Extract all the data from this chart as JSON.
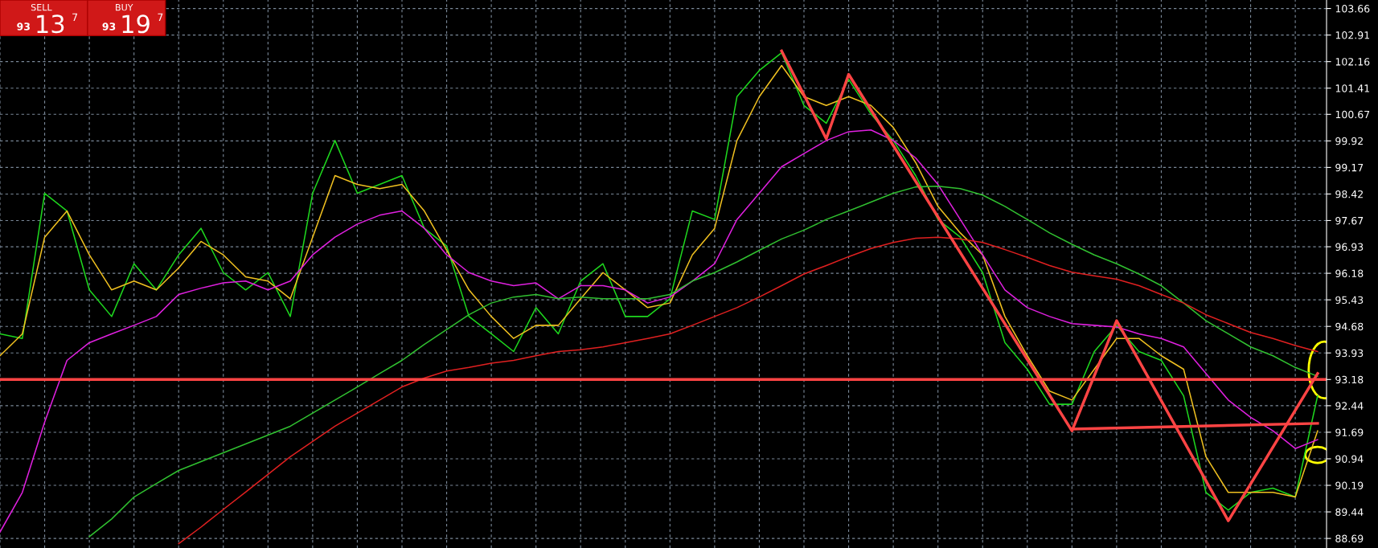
{
  "chart_data": {
    "type": "line",
    "categories": [
      null,
      null,
      null,
      null,
      null,
      null,
      null,
      null,
      null,
      null,
      null,
      null,
      null,
      null,
      null,
      null,
      null,
      null,
      null,
      null,
      null,
      null,
      null,
      null,
      null,
      null,
      null,
      null,
      null,
      null,
      null,
      null,
      null,
      null,
      null,
      null,
      null,
      null,
      null,
      null,
      null,
      null,
      null,
      null,
      null,
      null,
      null,
      null,
      null,
      null,
      null,
      null,
      null,
      null,
      null,
      null,
      null,
      null,
      null,
      null
    ],
    "series": [
      {
        "color": "#1ed81e",
        "values": [
          94.47,
          94.34,
          98.44,
          97.94,
          95.71,
          94.96,
          96.45,
          95.71,
          96.7,
          97.45,
          96.2,
          95.71,
          96.2,
          94.96,
          98.44,
          99.93,
          98.44,
          98.69,
          98.94,
          97.45,
          96.95,
          94.96,
          94.47,
          93.97,
          95.21,
          94.47,
          95.96,
          96.45,
          94.96,
          94.96,
          95.46,
          97.94,
          97.7,
          101.17,
          101.91,
          102.41,
          100.92,
          100.42,
          101.66,
          100.68,
          99.93,
          98.94,
          97.7,
          97.2,
          96.2,
          94.22,
          93.47,
          92.48,
          92.48,
          93.97,
          94.71,
          93.97,
          93.72,
          92.72,
          89.99,
          89.49,
          89.99,
          90.11,
          89.86,
          92.72
        ]
      },
      {
        "color": "#f0c020",
        "values": [
          93.85,
          94.47,
          97.2,
          97.94,
          96.7,
          95.71,
          95.96,
          95.71,
          96.33,
          97.08,
          96.7,
          96.08,
          95.96,
          95.46,
          97.2,
          98.94,
          98.69,
          98.57,
          98.69,
          97.94,
          96.83,
          95.71,
          94.96,
          94.34,
          94.71,
          94.71,
          95.46,
          96.2,
          95.71,
          95.21,
          95.34,
          96.7,
          97.45,
          99.93,
          101.17,
          102.05,
          101.17,
          100.92,
          101.17,
          100.92,
          100.3,
          99.31,
          98.07,
          97.32,
          96.7,
          94.96,
          93.85,
          92.85,
          92.6,
          93.47,
          94.34,
          94.34,
          93.85,
          93.47,
          91.0,
          89.99,
          89.99,
          89.99,
          89.86,
          91.73
        ]
      },
      {
        "color": "#e020e0",
        "values": [
          88.87,
          89.99,
          91.98,
          93.72,
          94.22,
          94.47,
          94.71,
          94.96,
          95.58,
          95.76,
          95.91,
          95.96,
          95.71,
          95.96,
          96.7,
          97.2,
          97.57,
          97.82,
          97.94,
          97.45,
          96.7,
          96.2,
          95.96,
          95.83,
          95.91,
          95.46,
          95.83,
          95.83,
          95.71,
          95.34,
          95.51,
          95.96,
          96.45,
          97.7,
          98.44,
          99.19,
          99.56,
          99.93,
          100.18,
          100.23,
          99.93,
          99.44,
          98.69,
          97.7,
          96.7,
          95.71,
          95.21,
          94.96,
          94.76,
          94.71,
          94.66,
          94.47,
          94.34,
          94.1,
          93.35,
          92.6,
          92.11,
          91.73,
          91.23,
          91.48
        ]
      },
      {
        "color": "#30c030",
        "values": [
          null,
          null,
          null,
          null,
          88.74,
          89.24,
          89.86,
          90.24,
          90.61,
          90.86,
          91.11,
          91.36,
          91.61,
          91.86,
          92.23,
          92.6,
          92.97,
          93.35,
          93.72,
          94.17,
          94.59,
          95.01,
          95.34,
          95.51,
          95.58,
          95.46,
          95.51,
          95.46,
          95.46,
          95.46,
          95.58,
          95.96,
          96.2,
          96.5,
          96.83,
          97.15,
          97.4,
          97.7,
          97.94,
          98.19,
          98.44,
          98.62,
          98.64,
          98.57,
          98.39,
          98.07,
          97.7,
          97.32,
          97.0,
          96.7,
          96.45,
          96.16,
          95.83,
          95.34,
          94.84,
          94.47,
          94.1,
          93.85,
          93.52,
          93.27
        ]
      },
      {
        "color": "#e02020",
        "values": [
          null,
          null,
          null,
          null,
          null,
          null,
          null,
          null,
          88.54,
          89.01,
          89.51,
          90.0,
          90.5,
          91.0,
          91.43,
          91.86,
          92.23,
          92.6,
          92.97,
          93.22,
          93.42,
          93.52,
          93.64,
          93.72,
          93.85,
          93.97,
          94.02,
          94.1,
          94.22,
          94.34,
          94.47,
          94.71,
          94.96,
          95.21,
          95.51,
          95.83,
          96.16,
          96.4,
          96.65,
          96.88,
          97.05,
          97.17,
          97.2,
          97.15,
          97.05,
          96.85,
          96.63,
          96.4,
          96.21,
          96.11,
          96.01,
          95.83,
          95.58,
          95.34,
          95.01,
          94.76,
          94.51,
          94.34,
          94.14,
          93.97
        ]
      },
      {
        "color": "#ff4444",
        "values": [
          null,
          null,
          null,
          null,
          null,
          null,
          null,
          null,
          null,
          null,
          null,
          null,
          null,
          null,
          null,
          null,
          null,
          null,
          null,
          null,
          null,
          null,
          null,
          null,
          null,
          null,
          null,
          null,
          null,
          null,
          null,
          null,
          null,
          null,
          null,
          102.46,
          null,
          99.98,
          101.8,
          null,
          null,
          null,
          null,
          null,
          null,
          null,
          null,
          null,
          91.73,
          null,
          94.84,
          null,
          null,
          null,
          null,
          89.19,
          null,
          null,
          null,
          93.35
        ]
      },
      {
        "color": "#ff4444",
        "values": [
          null,
          null,
          null,
          null,
          null,
          null,
          null,
          null,
          null,
          null,
          null,
          null,
          null,
          null,
          null,
          null,
          null,
          null,
          null,
          null,
          null,
          null,
          null,
          null,
          null,
          null,
          null,
          null,
          null,
          null,
          null,
          null,
          null,
          null,
          null,
          null,
          null,
          null,
          null,
          null,
          null,
          null,
          null,
          null,
          null,
          null,
          null,
          null,
          91.78,
          null,
          null,
          null,
          null,
          null,
          null,
          null,
          null,
          null,
          null,
          91.94
        ]
      }
    ],
    "ylim": [
      88.42,
      103.9
    ],
    "yticks": [
      88.69,
      89.44,
      90.19,
      90.94,
      91.69,
      92.44,
      93.18,
      93.93,
      94.68,
      95.43,
      96.18,
      96.93,
      97.67,
      98.42,
      99.17,
      99.92,
      100.67,
      101.41,
      102.16,
      102.91,
      103.66
    ],
    "ref_lines": [
      {
        "axis": "y",
        "value": 93.18,
        "color": "#ff4444"
      }
    ],
    "grid": true,
    "legend": false,
    "tick_labels": "y",
    "annotations": [
      "SELL",
      "BUY",
      "93",
      "13",
      "7",
      "93",
      "19",
      "7"
    ]
  }
}
